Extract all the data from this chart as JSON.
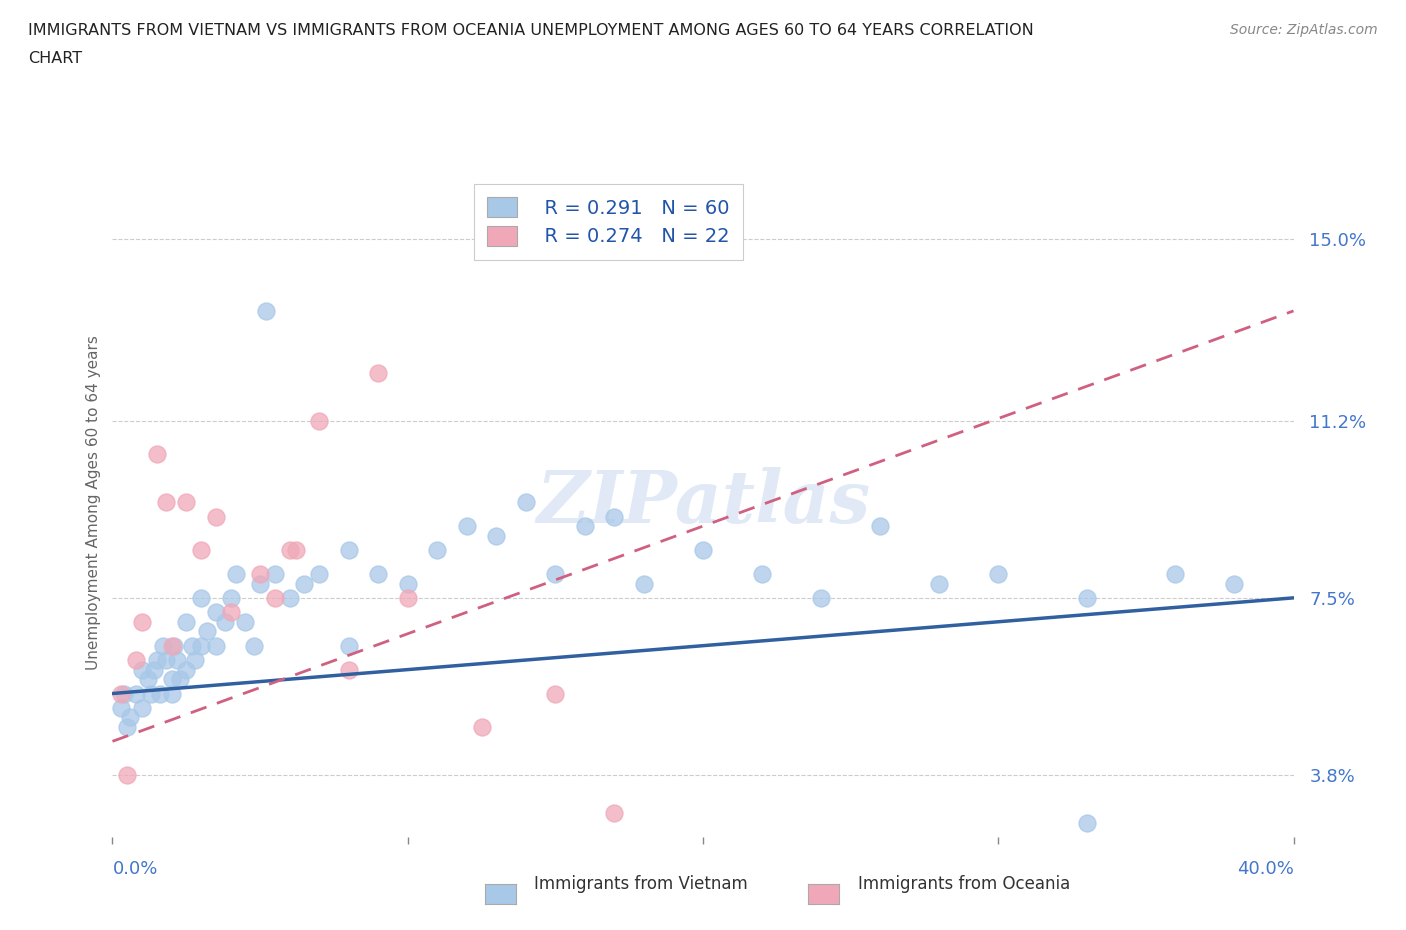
{
  "title_line1": "IMMIGRANTS FROM VIETNAM VS IMMIGRANTS FROM OCEANIA UNEMPLOYMENT AMONG AGES 60 TO 64 YEARS CORRELATION",
  "title_line2": "CHART",
  "source": "Source: ZipAtlas.com",
  "ylabel": "Unemployment Among Ages 60 to 64 years",
  "ytick_vals": [
    3.8,
    7.5,
    11.2,
    15.0
  ],
  "ytick_labels": [
    "3.8%",
    "7.5%",
    "11.2%",
    "15.0%"
  ],
  "xlim": [
    0.0,
    40.0
  ],
  "ylim": [
    2.5,
    16.5
  ],
  "legend_r1": "R = 0.291",
  "legend_n1": "N = 60",
  "legend_r2": "R = 0.274",
  "legend_n2": "N = 22",
  "color_vietnam": "#a8c8e8",
  "color_oceania": "#f0a8b8",
  "trend_vietnam": "#3060a0",
  "trend_oceania": "#d06080",
  "watermark": "ZIPatlas",
  "viet_trend_x": [
    0,
    40
  ],
  "viet_trend_y": [
    5.5,
    7.5
  ],
  "ocea_trend_x": [
    0,
    40
  ],
  "ocea_trend_y": [
    4.5,
    13.5
  ],
  "vietnam_x": [
    0.3,
    0.4,
    0.5,
    0.6,
    0.8,
    1.0,
    1.0,
    1.2,
    1.3,
    1.4,
    1.5,
    1.6,
    1.7,
    1.8,
    2.0,
    2.0,
    2.1,
    2.2,
    2.3,
    2.5,
    2.5,
    2.7,
    2.8,
    3.0,
    3.0,
    3.2,
    3.5,
    3.5,
    3.8,
    4.0,
    4.2,
    4.5,
    4.8,
    5.0,
    5.2,
    5.5,
    6.0,
    6.5,
    7.0,
    8.0,
    8.0,
    9.0,
    10.0,
    11.0,
    12.0,
    13.0,
    14.0,
    15.0,
    16.0,
    17.0,
    18.0,
    20.0,
    22.0,
    24.0,
    26.0,
    28.0,
    30.0,
    33.0,
    36.0,
    38.0
  ],
  "vietnam_y": [
    5.2,
    5.5,
    4.8,
    5.0,
    5.5,
    6.0,
    5.2,
    5.8,
    5.5,
    6.0,
    6.2,
    5.5,
    6.5,
    6.2,
    5.8,
    5.5,
    6.5,
    6.2,
    5.8,
    6.0,
    7.0,
    6.5,
    6.2,
    6.5,
    7.5,
    6.8,
    6.5,
    7.2,
    7.0,
    7.5,
    8.0,
    7.0,
    6.5,
    7.8,
    13.5,
    8.0,
    7.5,
    7.8,
    8.0,
    8.5,
    6.5,
    8.0,
    7.8,
    8.5,
    9.0,
    8.8,
    9.5,
    8.0,
    9.0,
    9.2,
    7.8,
    8.5,
    8.0,
    7.5,
    9.0,
    7.8,
    8.0,
    7.5,
    8.0,
    7.8
  ],
  "oceania_x": [
    0.3,
    0.5,
    0.8,
    1.0,
    1.5,
    1.8,
    2.0,
    2.5,
    3.0,
    3.5,
    4.0,
    5.0,
    5.5,
    6.0,
    6.2,
    7.0,
    8.0,
    9.0,
    10.0,
    12.5,
    15.0,
    17.0
  ],
  "oceania_y": [
    5.5,
    3.8,
    6.2,
    7.0,
    10.5,
    9.5,
    6.5,
    9.5,
    8.5,
    9.2,
    7.2,
    8.0,
    7.5,
    8.5,
    8.5,
    11.2,
    6.0,
    12.2,
    7.5,
    4.8,
    5.5,
    3.0
  ],
  "x_extra_viet": [
    33.0
  ],
  "y_extra_viet": [
    2.8
  ]
}
